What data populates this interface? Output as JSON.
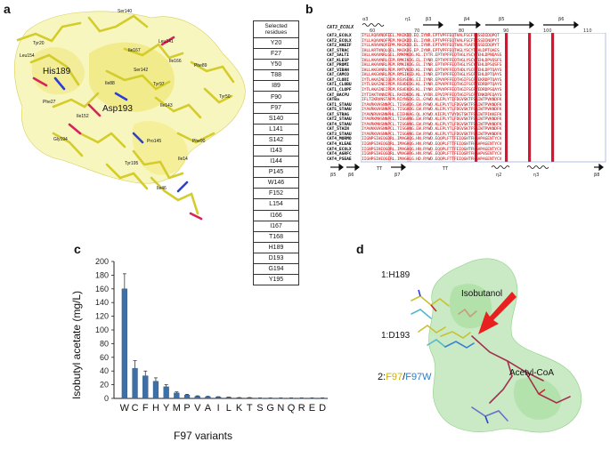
{
  "panels": {
    "a": "a",
    "b": "b",
    "c": "c",
    "d": "d"
  },
  "panel_a": {
    "labels": {
      "his": "His189",
      "asp": "Asp193"
    },
    "small_labels": [
      "Tyr20",
      "Ser140",
      "Leu141",
      "Leu154",
      "Ile167",
      "Ser142",
      "Phe89",
      "Ile166",
      "Ile88",
      "Tyr97",
      "Phe27",
      "Ile143",
      "Tyr50",
      "Ile152",
      "Gly194",
      "Phe90",
      "Tyr195",
      "Pro145",
      "Ile46",
      "Ile14"
    ],
    "table_header": "Selected\nresidues",
    "residues": [
      "Y20",
      "F27",
      "Y50",
      "T88",
      "I89",
      "F90",
      "F97",
      "S140",
      "L141",
      "S142",
      "I143",
      "I144",
      "P145",
      "W146",
      "F152",
      "L154",
      "I166",
      "I167",
      "T168",
      "H189",
      "D193",
      "G194",
      "Y195"
    ]
  },
  "panel_b": {
    "ref_name": "CAT3_ECOLX",
    "secondary_top": [
      "α3",
      "η1",
      "β3",
      "β4",
      "β5",
      "β6"
    ],
    "ruler_top": [
      "60",
      "70",
      "80",
      "90",
      "100",
      "110"
    ],
    "secondary_bottom": [
      "β5",
      "β6",
      "TT",
      "β7",
      "TT",
      "η2",
      "η3",
      "β8"
    ],
    "names": [
      "CAT3_ECOLX",
      "CAT2_ECOLX",
      "CAT2_HAEIF",
      "CAT_STRAC",
      "CAT_SALTI",
      "CAT_KLESP",
      "CAT_PROMI",
      "CAT_VIBAN",
      "CAT_CAMCO",
      "CAT_CLODI",
      "CAT1_CLOBU",
      "CAT1_CLOPF",
      "CAT_BACPU",
      "CATBa",
      "CAT1_STAAU",
      "CAT5_STAAU",
      "CAT_STRAG",
      "CAT2_STAAU",
      "CAT4_STAAU",
      "CAT_STAIN",
      "CAT3_STAAU",
      "CAT4_MORMO",
      "CAT4_KLEAE",
      "CAT4_ECOLX",
      "CAT4_AGRFC",
      "CAT4_PSEAE"
    ],
    "seqs": [
      "IYLLAQAVNQFEEL.MAIKDD.EQ.IYNR.EPTVPFFEQTHALFSCFTRSSDIDQPQT",
      "IYLLAQAVNQFPEM.MAIKDD.EL.IYNR.EPTVPFFEQTHALFSCFTRSSDINQPYT",
      "IYLLARAVNQFEPM.MAIKDD.EL.IYNR.EPTVPFFEQTHALYSAFTRSSDIDQPYT",
      "IHLLARTVNQLQEL.MAIKDG.EP.IYNR.EPTVPFFEQTHGLYSCYTEHLDPTQAES",
      "IHLLAKAVNRLGEL.RMKMKDG.KL.IYTR.EPTVPFFEQTHGLYSCYTEHLDPNQASS",
      "IHLLAKAVNRLCEM.RMKIKDG.EL.IYNR.EPTVPFFEQTHGLYSCYTEHLDPVQSFS",
      "IHLLAKAVNRLPEM.RMKIKDG.EL.IYNR.EPTVPFFEQTHGLYSCYTEHLDPSQSFS",
      "IHLLAKGVNRLPEM.RMTVKDD.KL.IYNR.EPTVPFFEQTHDLYSCFTEHLDPTQAYS",
      "IHLLAKGVNRLPEM.RMSIKED.KL.IYNR.EPTVPFFEQTHGLYSCFTEHLDPTQAYS",
      "IYTLAKAINEIQEM.RSVSENG.EI.IYNR.EPVVPFFEQTHGIFSCFYEKRDPTQAYS",
      "IYTLSKAINEIPEM.RSVDEDG.KL.IYNR.EPVVPFFEQTHGIFSCFYEDRDPTQAYS",
      "IYTLAKAINEIPEM.RSVEKDG.KL.IYNR.EPVVPFFEQTHGIFSCFYEDRDPSQAYS",
      "IYTIAKTVNNIPEL.RAIDKDG.NL.VYDR.EPVIPFFEQTHGIFSCFYENKDPEQAYS",
      "IFLTIKRVNSTAFM.RIYNSDG.EL.GYWD.KLEPLYTIFDGVSKTFSAIWTPVKNDFK",
      "IYAVRKVHSNNPCL.TISGHDG.EW.RYWD.KLEPLYTLFDGVSKTFSAIWTPVKNDFK",
      "IYAVRKVHSNNPCL.TISGHDG.EW.RYWD.KLEPLYTLFDGVSKTFSAIWTPVKNDFK",
      "IYAVNRVHSNNPHL.EIEHHAG.QL.KYWD.KIEPLYTVYDGTSKTFSAIWTPIKKEFK",
      "IYAVRKMHSNNPCL.TISGHNG.EW.RYWD.KLEPLYTLFDGVSKTFSAIWTPVKNDFK",
      "IYAVRKMHSNNPCL.TISGHNG.EW.RYWD.KLEPLYTLFDGVSKTFSAIWTPVKNDFK",
      "IYAVKKVHSNNPCL.TISGHNG.EW.RYWD.KLEPLYTLFDGVSKTFSAIWTPVKNDFK",
      "IYAVRKVHSNNPCL.TISGHNG.EW.RYWD.KLEPLYTLFDGVSKTFSAIWTPVKNDFK",
      "IIGNPSIHEQGDRL.IMAGHQG.HN.RYWD.EQQPLFTTFEIQGHTFHAHPAGENTYCV",
      "IIGNPSIHEQGDRL.IMAGHQG.HN.RYWD.EQQPLFTTFEIQGHTFHAHPAGENTYCV",
      "IIGNPSIHEQGDRL.IMAGHQG.HN.RYWD.EQQPLFTTFEIQGHTFHAHPAGENTYCV",
      "IIGNPSIHEQGDRL.VMAGHRG.HN.RYWE.EQQPLFTTFEIQGRTFHAHPVGENTYCV",
      "IIGHPSIHEQGERL.IMAGHLG.HD.RYWD.EQQPLFTTFEIQGHTFHAHPAGENTYCV"
    ]
  },
  "panel_c": {
    "chart_data": {
      "type": "bar",
      "categories": [
        "W",
        "C",
        "F",
        "H",
        "Y",
        "M",
        "P",
        "V",
        "A",
        "I",
        "L",
        "K",
        "T",
        "S",
        "G",
        "N",
        "Q",
        "R",
        "E",
        "D"
      ],
      "values": [
        160,
        44,
        33,
        25,
        17,
        8,
        5,
        3,
        2.5,
        2,
        1.5,
        1,
        1,
        0.5,
        0.5,
        0.5,
        0.5,
        0.5,
        0.5,
        0.5
      ],
      "errors": [
        22,
        11,
        7,
        5,
        3,
        1.5,
        1,
        0.8,
        0.6,
        0.5,
        0.4,
        0.3,
        0.3,
        0.2,
        0.2,
        0.2,
        0.2,
        0.2,
        0.2,
        0.2
      ],
      "xlabel": "F97 variants",
      "ylabel": "Isobutyl acetate (mg/L)",
      "ylim": [
        0,
        200
      ],
      "yticks": [
        "0",
        "20",
        "40",
        "60",
        "80",
        "100",
        "120",
        "140",
        "160",
        "180",
        "200"
      ],
      "bar_color": "#3d6fa8",
      "grid": false
    }
  },
  "panel_d": {
    "label_h189": "1:H189",
    "label_d193": "1:D193",
    "label_isobutanol": "Isobutanol",
    "label_acetyl": "Acetyl-CoA",
    "label_f97_prefix": "2:",
    "label_f97": "F97",
    "label_sep": "/",
    "label_f97w": "F97W",
    "colors": {
      "surface": "#b7e3b0",
      "arrow": "#e8201f",
      "f97": "#c9b300",
      "f97w": "#2a7cc7"
    }
  }
}
